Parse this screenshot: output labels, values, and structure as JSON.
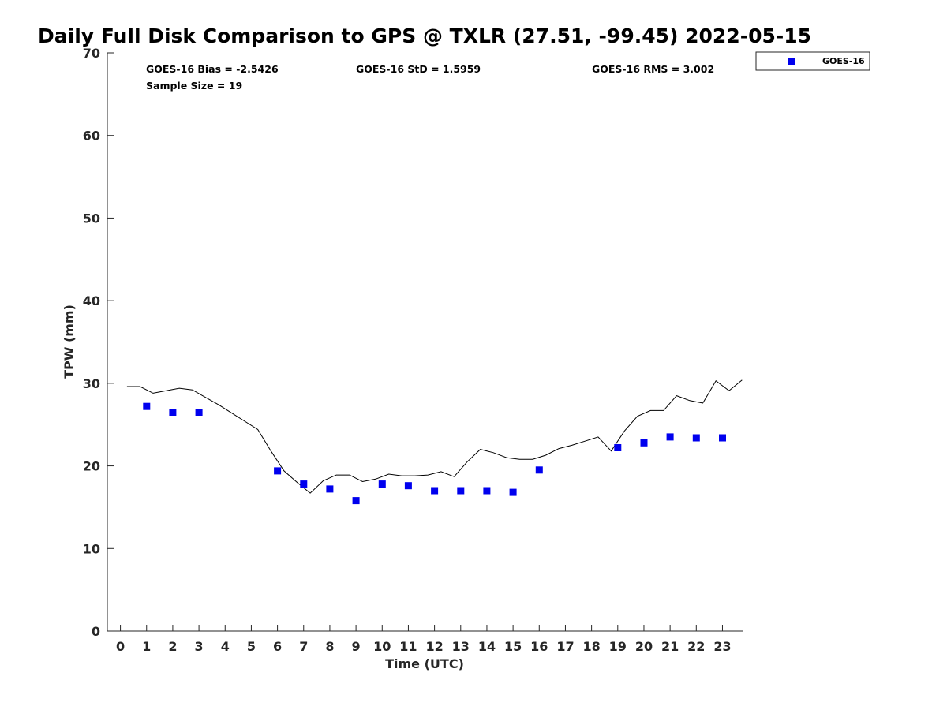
{
  "chart_data": {
    "type": "scatter",
    "title": "Daily Full Disk Comparison to GPS @ TXLR (27.51, -99.45) 2022-05-15",
    "xlabel": "Time (UTC)",
    "ylabel": "TPW (mm)",
    "xlim": [
      -0.5,
      23.8
    ],
    "ylim": [
      0,
      70
    ],
    "x_ticks": [
      0,
      1,
      2,
      3,
      4,
      5,
      6,
      7,
      8,
      9,
      10,
      11,
      12,
      13,
      14,
      15,
      16,
      17,
      18,
      19,
      20,
      21,
      22,
      23
    ],
    "y_ticks": [
      0,
      10,
      20,
      30,
      40,
      50,
      60,
      70
    ],
    "stats": {
      "bias": "GOES-16 Bias = -2.5426",
      "std": "GOES-16 StD = 1.5959",
      "rms": "GOES-16 RMS = 3.002",
      "sample": "Sample Size = 19"
    },
    "legend": {
      "label": "GOES-16",
      "position": "top-right outside"
    },
    "series": [
      {
        "name": "GOES-16",
        "kind": "scatter",
        "color": "#0000ee",
        "x": [
          1,
          2,
          3,
          6,
          7,
          8,
          9,
          10,
          11,
          12,
          13,
          14,
          15,
          16,
          19,
          20,
          21,
          22,
          23
        ],
        "values": [
          27.2,
          26.5,
          26.5,
          19.4,
          17.8,
          17.2,
          15.8,
          17.8,
          17.6,
          17.0,
          17.0,
          17.0,
          16.8,
          19.5,
          22.2,
          22.8,
          23.5,
          23.4,
          23.4
        ]
      },
      {
        "name": "GPS",
        "kind": "line",
        "color": "#000000",
        "x": [
          0.25,
          0.75,
          1.25,
          1.75,
          2.25,
          2.75,
          3.25,
          3.75,
          4.25,
          4.75,
          5.25,
          5.75,
          6.25,
          6.75,
          7.25,
          7.75,
          8.25,
          8.75,
          9.25,
          9.75,
          10.25,
          10.75,
          11.25,
          11.75,
          12.25,
          12.75,
          13.25,
          13.75,
          14.25,
          14.75,
          15.25,
          15.75,
          16.25,
          16.75,
          17.25,
          17.75,
          18.25,
          18.75,
          19.25,
          19.75,
          20.25,
          20.75,
          21.25,
          21.75,
          22.25,
          22.75,
          23.25,
          23.75
        ],
        "values": [
          29.6,
          29.6,
          28.8,
          29.1,
          29.4,
          29.2,
          28.3,
          27.4,
          26.4,
          25.4,
          24.4,
          21.8,
          19.4,
          18.0,
          16.7,
          18.2,
          18.9,
          18.9,
          18.1,
          18.4,
          19.0,
          18.8,
          18.8,
          18.9,
          19.3,
          18.7,
          20.5,
          22.0,
          21.6,
          21.0,
          20.8,
          20.8,
          21.3,
          22.1,
          22.5,
          23.0,
          23.5,
          21.8,
          24.2,
          26.0,
          26.7,
          26.7,
          28.5,
          27.9,
          27.6,
          30.3,
          29.1,
          30.4
        ]
      }
    ]
  }
}
